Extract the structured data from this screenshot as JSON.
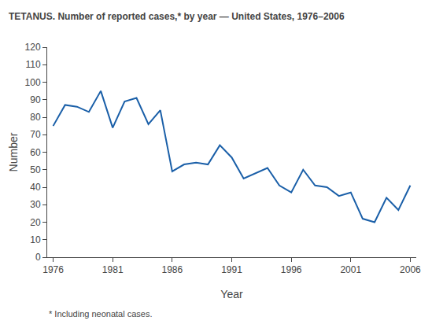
{
  "chart_data": {
    "type": "line",
    "title": "TETANUS. Number of reported cases,* by year — United States, 1976–2006",
    "xlabel": "Year",
    "ylabel": "Number",
    "annotations": [
      "* Including neonatal cases."
    ],
    "color": "#1a5fa8",
    "x": [
      1976,
      1977,
      1978,
      1979,
      1980,
      1981,
      1982,
      1983,
      1984,
      1985,
      1986,
      1987,
      1988,
      1989,
      1990,
      1991,
      1992,
      1993,
      1994,
      1995,
      1996,
      1997,
      1998,
      1999,
      2000,
      2001,
      2002,
      2003,
      2004,
      2005,
      2006
    ],
    "values": [
      75,
      87,
      86,
      83,
      95,
      74,
      89,
      91,
      76,
      84,
      49,
      53,
      54,
      53,
      64,
      57,
      45,
      48,
      51,
      41,
      37,
      50,
      41,
      40,
      35,
      37,
      22,
      20,
      34,
      27,
      41
    ],
    "xlim": [
      1975.5,
      2006.5
    ],
    "xticks": [
      1976,
      1981,
      1986,
      1991,
      1996,
      2001,
      2006
    ],
    "ylim": [
      0,
      120
    ],
    "yticks": [
      0,
      10,
      20,
      30,
      40,
      50,
      60,
      70,
      80,
      90,
      100,
      110,
      120
    ],
    "grid": false
  }
}
